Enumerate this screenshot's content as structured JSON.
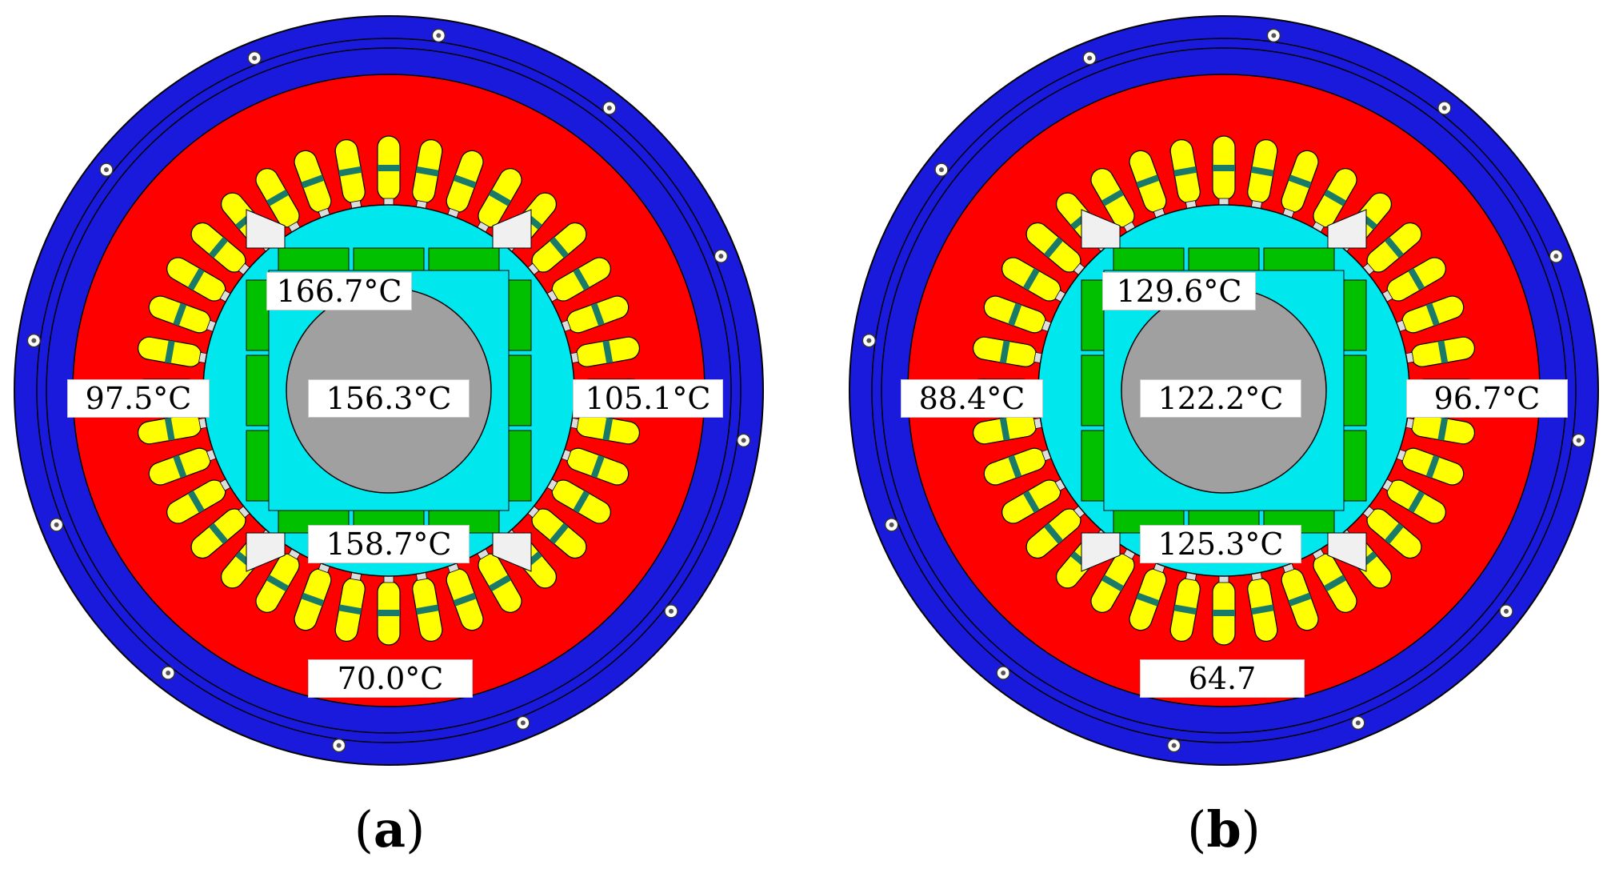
{
  "panels": [
    {
      "caption": "a",
      "labels": {
        "magnet_top": "166.7°C",
        "shaft": "156.3°C",
        "magnet_bottom": "158.7°C",
        "winding_left": "97.5°C",
        "winding_right": "105.1°C",
        "housing_bottom": "70.0°C"
      }
    },
    {
      "caption": "b",
      "labels": {
        "magnet_top": "129.6°C",
        "shaft": "122.2°C",
        "magnet_bottom": "125.3°C",
        "winding_left": "88.4°C",
        "winding_right": "96.7°C",
        "housing_bottom": "64.7"
      }
    }
  ],
  "colors": {
    "housing": "#1a1adc",
    "stator": "#ff0000",
    "winding": "#ffff00",
    "winding_separator": "#1a7a6a",
    "rotor": "#00e8ee",
    "magnet": "#00c000",
    "pole_gap": "#f0f0f0",
    "shaft": "#a0a0a0"
  }
}
